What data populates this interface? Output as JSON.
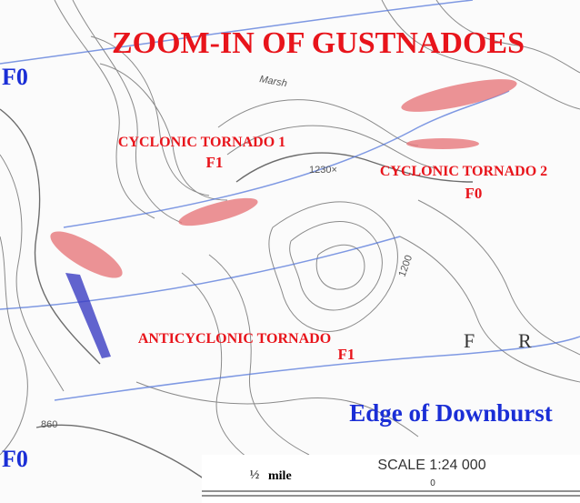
{
  "title": "ZOOM-IN OF GUSTNADOES",
  "corner_ratings": [
    "F0",
    "F0"
  ],
  "tornadoes": [
    {
      "name": "CYCLONIC TORNADO 1",
      "rating": "F1"
    },
    {
      "name": "CYCLONIC TORNADO 2",
      "rating": "F0"
    },
    {
      "name": "ANTICYCLONIC TORNADO",
      "rating": "F1"
    }
  ],
  "downburst_edge": "Edge of Downburst",
  "scale_bar": {
    "fraction": "½",
    "unit": "mile",
    "scale": "SCALE 1:24 000",
    "zero": "0"
  },
  "map_labels": [
    "Marsh",
    "1230×",
    "1200",
    "860",
    "F",
    "R"
  ]
}
